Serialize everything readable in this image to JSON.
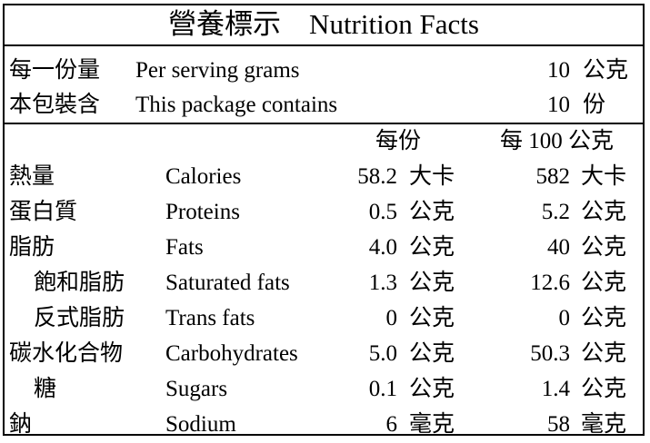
{
  "title": "營養標示　Nutrition Facts",
  "serving": [
    {
      "zh": "每一份量",
      "en": "Per serving grams",
      "value": "10",
      "unit": "公克"
    },
    {
      "zh": "本包裝含",
      "en": "This package contains",
      "value": "10",
      "unit": "份"
    }
  ],
  "columns": {
    "per_serving": "每份",
    "per_100g": "每 100 公克"
  },
  "nutrients": [
    {
      "zh": "熱量",
      "en": "Calories",
      "per_serving": "58.2",
      "per_serving_unit": "大卡",
      "per_100g": "582",
      "per_100g_unit": "大卡"
    },
    {
      "zh": "蛋白質",
      "en": "Proteins",
      "per_serving": "0.5",
      "per_serving_unit": "公克",
      "per_100g": "5.2",
      "per_100g_unit": "公克"
    },
    {
      "zh": "脂肪",
      "en": "Fats",
      "per_serving": "4.0",
      "per_serving_unit": "公克",
      "per_100g": "40",
      "per_100g_unit": "公克"
    },
    {
      "zh": "飽和脂肪",
      "en": "Saturated fats",
      "per_serving": "1.3",
      "per_serving_unit": "公克",
      "per_100g": "12.6",
      "per_100g_unit": "公克"
    },
    {
      "zh": "反式脂肪",
      "en": "Trans fats",
      "per_serving": "0",
      "per_serving_unit": "公克",
      "per_100g": "0",
      "per_100g_unit": "公克"
    },
    {
      "zh": "碳水化合物",
      "en": "Carbohydrates",
      "per_serving": "5.0",
      "per_serving_unit": "公克",
      "per_100g": "50.3",
      "per_100g_unit": "公克"
    },
    {
      "zh": "糖",
      "en": "Sugars",
      "per_serving": "0.1",
      "per_serving_unit": "公克",
      "per_100g": "1.4",
      "per_100g_unit": "公克"
    },
    {
      "zh": "鈉",
      "en": "Sodium",
      "per_serving": "6",
      "per_serving_unit": "毫克",
      "per_100g": "58",
      "per_100g_unit": "毫克"
    }
  ]
}
